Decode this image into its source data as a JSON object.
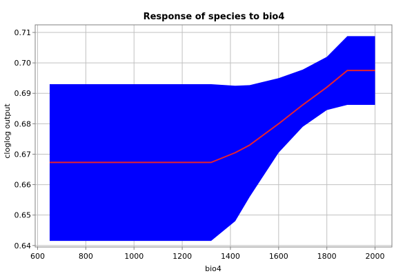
{
  "chart_data": {
    "type": "area",
    "title": "Response of species to bio4",
    "xlabel": "bio4",
    "ylabel": "cloglog output",
    "xlim": [
      590,
      2070
    ],
    "ylim": [
      0.6395,
      0.7125
    ],
    "x_ticks": [
      600,
      800,
      1000,
      1200,
      1400,
      1600,
      1800,
      2000
    ],
    "y_ticks": [
      0.64,
      0.65,
      0.66,
      0.67,
      0.68,
      0.69,
      0.7,
      0.71
    ],
    "x_tick_labels": [
      "600",
      "800",
      "1000",
      "1200",
      "1400",
      "1600",
      "1800",
      "2000"
    ],
    "y_tick_labels": [
      "0.64",
      "0.65",
      "0.66",
      "0.67",
      "0.68",
      "0.69",
      "0.70",
      "0.71"
    ],
    "grid": true,
    "band": {
      "color": "#0000ff",
      "x": [
        650,
        1320,
        1420,
        1480,
        1600,
        1700,
        1800,
        1885,
        1885,
        2000
      ],
      "upper": [
        0.693,
        0.693,
        0.6925,
        0.6927,
        0.695,
        0.6978,
        0.702,
        0.7088,
        0.7088,
        0.7088
      ],
      "lower": [
        0.6415,
        0.6415,
        0.648,
        0.656,
        0.6705,
        0.679,
        0.6845,
        0.6862,
        0.6862,
        0.6862
      ]
    },
    "series": [
      {
        "color": "#e8232d",
        "x": [
          650,
          1320,
          1420,
          1480,
          1600,
          1700,
          1800,
          1885,
          2000
        ],
        "y": [
          0.6673,
          0.6673,
          0.6705,
          0.673,
          0.68,
          0.6862,
          0.692,
          0.6975,
          0.6975
        ]
      }
    ]
  }
}
